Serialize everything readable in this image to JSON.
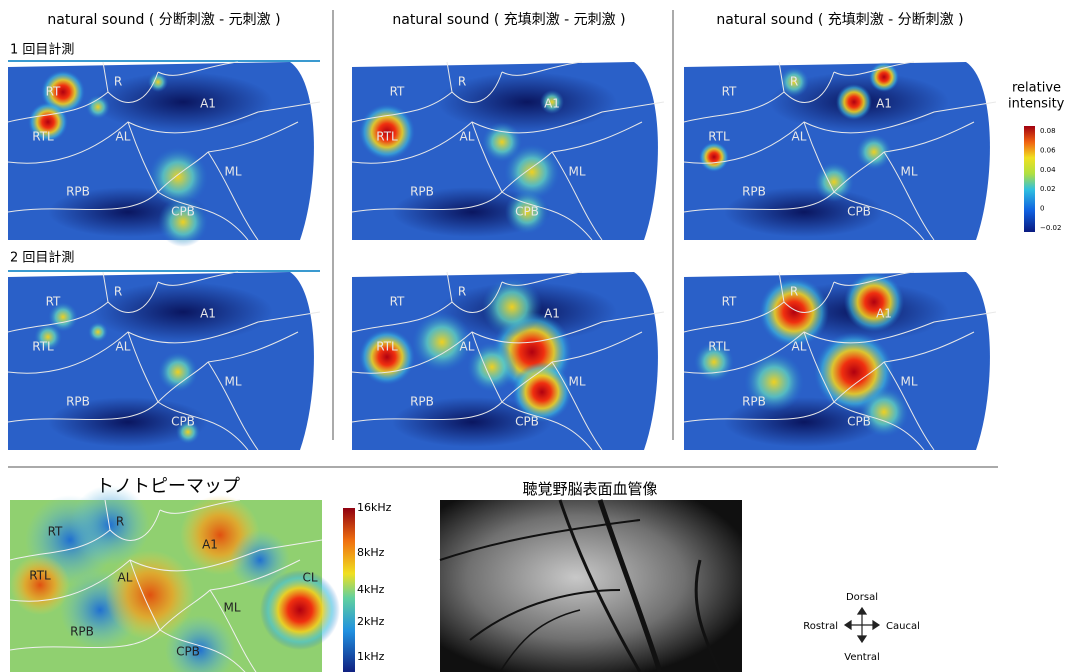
{
  "panel_titles": [
    "natural sound ( 分断刺激 - 元刺激 )",
    "natural sound ( 充填刺激 - 元刺激 )",
    "natural sound ( 充填刺激 - 分断刺激 )"
  ],
  "session_labels": [
    "1 回目計測",
    "2 回目計測"
  ],
  "region_labels": [
    "RT",
    "R",
    "A1",
    "RTL",
    "AL",
    "ML",
    "RPB",
    "CPB"
  ],
  "colorbar": {
    "title": [
      "relative",
      "intensity"
    ],
    "labels": [
      "0.08",
      "0.06",
      "0.04",
      "0.02",
      "0",
      "−0.02"
    ]
  },
  "tonotopy": {
    "title": "トノトピーマップ",
    "regions": [
      "RT",
      "R",
      "A1",
      "RTL",
      "AL",
      "ML",
      "RPB",
      "CPB",
      "CL"
    ],
    "scale_labels": [
      "16kHz",
      "8kHz",
      "4kHz",
      "2kHz",
      "1kHz"
    ]
  },
  "vessel": {
    "title": "聴覚野脳表面血管像"
  },
  "orientation": {
    "dorsal": "Dorsal",
    "rostral": "Rostral",
    "caudal": "Caucal",
    "ventral": "Ventral"
  }
}
